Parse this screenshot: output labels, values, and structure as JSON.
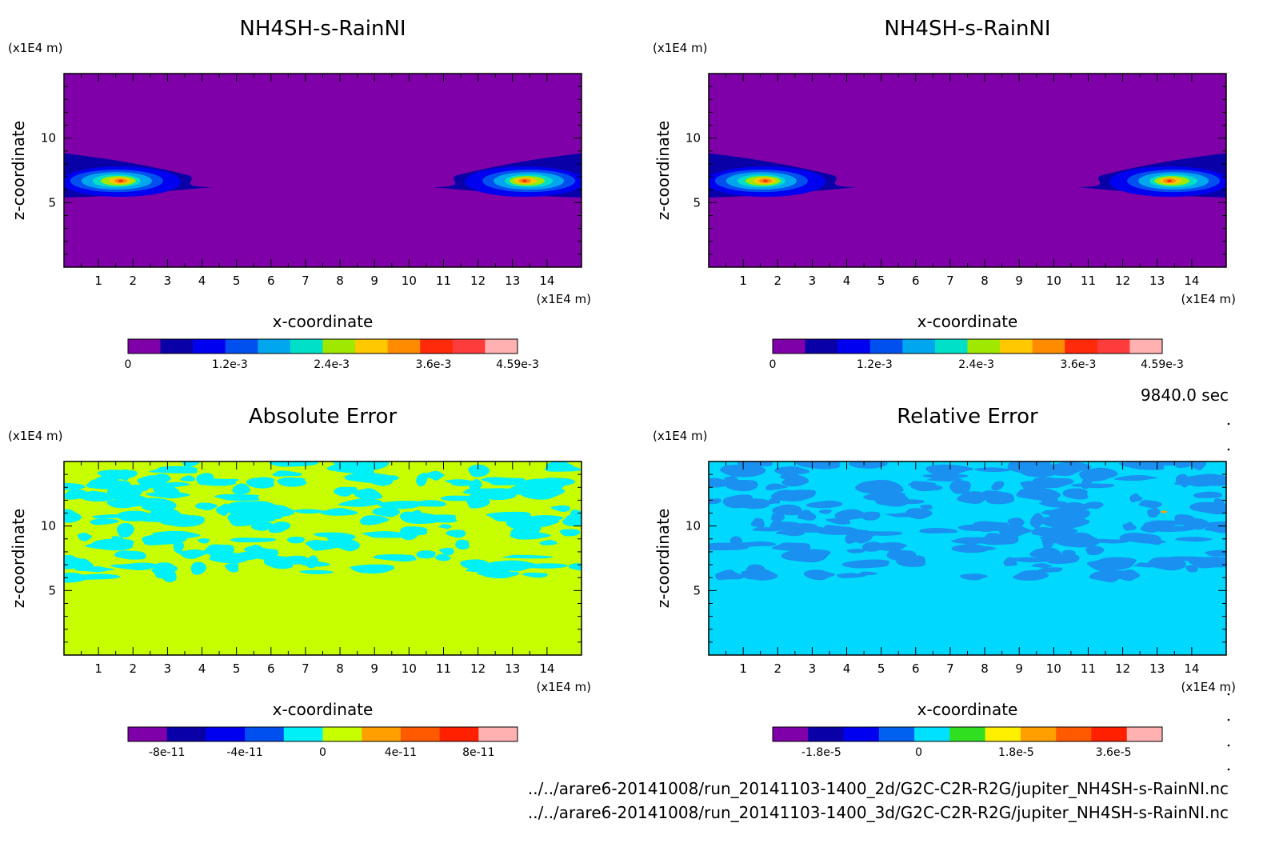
{
  "chart_data": [
    {
      "type": "heatmap",
      "title": "NH4SH-s-RainNI",
      "xlabel": "x-coordinate",
      "ylabel": "z-coordinate",
      "x_unit": "(x1E4 m)",
      "y_unit": "(x1E4 m)",
      "xlim": [
        0,
        15
      ],
      "ylim": [
        0,
        15
      ],
      "x_ticks": [
        "1",
        "2",
        "3",
        "4",
        "5",
        "6",
        "7",
        "8",
        "9",
        "10",
        "11",
        "12",
        "13",
        "14"
      ],
      "y_ticks": [
        "5",
        "10"
      ],
      "colorbar_ticks": [
        "0",
        "1.2e-3",
        "2.4e-3",
        "3.6e-3",
        "4.59e-3"
      ],
      "colorbar_range": [
        0,
        0.00459
      ],
      "background_level": 0,
      "features": "two cloud blobs near z=6-7 at the left (x=0-4) and right (x=12-15) edges, peak ~3.6e-3"
    },
    {
      "type": "heatmap",
      "title": "NH4SH-s-RainNI",
      "xlabel": "x-coordinate",
      "ylabel": "z-coordinate",
      "x_unit": "(x1E4 m)",
      "y_unit": "(x1E4 m)",
      "xlim": [
        0,
        15
      ],
      "ylim": [
        0,
        15
      ],
      "x_ticks": [
        "1",
        "2",
        "3",
        "4",
        "5",
        "6",
        "7",
        "8",
        "9",
        "10",
        "11",
        "12",
        "13",
        "14"
      ],
      "y_ticks": [
        "5",
        "10"
      ],
      "colorbar_ticks": [
        "0",
        "1.2e-3",
        "2.4e-3",
        "3.6e-3",
        "4.59e-3"
      ],
      "colorbar_range": [
        0,
        0.00459
      ],
      "background_level": 0,
      "features": "identical to first panel"
    },
    {
      "type": "heatmap",
      "title": "Absolute Error",
      "xlabel": "x-coordinate",
      "ylabel": "z-coordinate",
      "x_unit": "(x1E4 m)",
      "y_unit": "(x1E4 m)",
      "xlim": [
        0,
        15
      ],
      "ylim": [
        0,
        15
      ],
      "x_ticks": [
        "1",
        "2",
        "3",
        "4",
        "5",
        "6",
        "7",
        "8",
        "9",
        "10",
        "11",
        "12",
        "13",
        "14"
      ],
      "y_ticks": [
        "5",
        "10"
      ],
      "colorbar_ticks": [
        "-8e-11",
        "-4e-11",
        "0",
        "4e-11",
        "8e-11"
      ],
      "colorbar_range": [
        -1e-10,
        1e-10
      ],
      "background_level": 0,
      "features": "noisy patches between -2e-11 and 0 above z=6"
    },
    {
      "type": "heatmap",
      "title": "Relative Error",
      "xlabel": "x-coordinate",
      "ylabel": "z-coordinate",
      "x_unit": "(x1E4 m)",
      "y_unit": "(x1E4 m)",
      "xlim": [
        0,
        15
      ],
      "ylim": [
        0,
        15
      ],
      "x_ticks": [
        "1",
        "2",
        "3",
        "4",
        "5",
        "6",
        "7",
        "8",
        "9",
        "10",
        "11",
        "12",
        "13",
        "14"
      ],
      "y_ticks": [
        "5",
        "10"
      ],
      "colorbar_ticks": [
        "-1.8e-5",
        "0",
        "1.8e-5",
        "3.6e-5"
      ],
      "colorbar_range": [
        -2.7e-05,
        4.5e-05
      ],
      "background_level": 0,
      "features": "noisy slightly negative patches above z=6, a tiny positive spot near x=13.2, z=11"
    }
  ],
  "colorbars": {
    "top": [
      "#7f00a8",
      "#0a00a8",
      "#0000f0",
      "#0050f0",
      "#00a6ee",
      "#00e0c8",
      "#a0e800",
      "#ffc800",
      "#ff8c00",
      "#ff2a0a",
      "#ff3c3c",
      "#ffb0b0"
    ],
    "abs": [
      "#7f00a8",
      "#0a00a8",
      "#0000f0",
      "#0050f0",
      "#00f0f8",
      "#c8ff00",
      "#ffa000",
      "#ff5a00",
      "#ff2000",
      "#ffb0b0"
    ],
    "rel": [
      "#7f00a8",
      "#0a00a8",
      "#0000f0",
      "#0060f0",
      "#00e0ff",
      "#30e020",
      "#fff000",
      "#ffa000",
      "#ff5a00",
      "#ff2000",
      "#ffb0b0"
    ]
  },
  "colors": {
    "purple": "#7f00a8",
    "lime": "#c8ff00",
    "cyan": "#00f0f8",
    "sky": "#00d8ff",
    "blue2": "#1a90f0"
  },
  "timestamp": "9840.0 sec",
  "footer_lines": [
    "../../arare6-20141008/run_20141103-1400_2d/G2C-C2R-R2G/jupiter_NH4SH-s-RainNI.nc",
    "../../arare6-20141008/run_20141103-1400_3d/G2C-C2R-R2G/jupiter_NH4SH-s-RainNI.nc"
  ]
}
